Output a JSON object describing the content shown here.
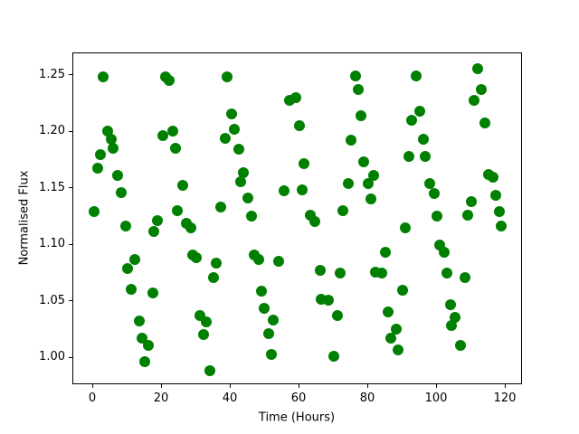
{
  "figure": {
    "background": "#ffffff",
    "spine_color": "#000000"
  },
  "chart_data": {
    "type": "scatter",
    "title": "",
    "xlabel": "Time (Hours)",
    "ylabel": "Normalised Flux",
    "marker_color": "#008000",
    "marker_diameter_px": 12,
    "grid": false,
    "legend": null,
    "xlim": [
      -5.8,
      125.0
    ],
    "ylim": [
      0.976,
      1.27
    ],
    "xticks": [
      0,
      20,
      40,
      60,
      80,
      100,
      120
    ],
    "xtick_labels": [
      "0",
      "20",
      "40",
      "60",
      "80",
      "100",
      "120"
    ],
    "yticks": [
      1.0,
      1.05,
      1.1,
      1.15,
      1.2,
      1.25
    ],
    "ytick_labels": [
      "1.00",
      "1.05",
      "1.10",
      "1.15",
      "1.20",
      "1.25"
    ],
    "points": [
      [
        2.9,
        1.249
      ],
      [
        21.1,
        1.249
      ],
      [
        22.1,
        1.246
      ],
      [
        38.9,
        1.249
      ],
      [
        57.1,
        1.228
      ],
      [
        58.9,
        1.231
      ],
      [
        60.0,
        1.206
      ],
      [
        40.3,
        1.216
      ],
      [
        4.2,
        1.201
      ],
      [
        5.3,
        1.194
      ],
      [
        5.8,
        1.186
      ],
      [
        2.1,
        1.18
      ],
      [
        1.3,
        1.168
      ],
      [
        7.1,
        1.162
      ],
      [
        8.2,
        1.147
      ],
      [
        20.3,
        1.197
      ],
      [
        23.2,
        1.201
      ],
      [
        23.9,
        1.186
      ],
      [
        26.1,
        1.153
      ],
      [
        38.4,
        1.195
      ],
      [
        41.1,
        1.203
      ],
      [
        42.4,
        1.185
      ],
      [
        43.7,
        1.164
      ],
      [
        42.9,
        1.156
      ],
      [
        45.0,
        1.142
      ],
      [
        37.1,
        1.134
      ],
      [
        0.3,
        1.13
      ],
      [
        24.5,
        1.131
      ],
      [
        46.1,
        1.126
      ],
      [
        55.5,
        1.148
      ],
      [
        76.3,
        1.25
      ],
      [
        93.9,
        1.25
      ],
      [
        111.8,
        1.256
      ],
      [
        77.1,
        1.238
      ],
      [
        112.9,
        1.238
      ],
      [
        110.8,
        1.228
      ],
      [
        77.9,
        1.215
      ],
      [
        95.0,
        1.219
      ],
      [
        92.6,
        1.211
      ],
      [
        113.9,
        1.208
      ],
      [
        75.0,
        1.193
      ],
      [
        96.0,
        1.194
      ],
      [
        91.8,
        1.179
      ],
      [
        96.6,
        1.179
      ],
      [
        61.3,
        1.172
      ],
      [
        78.7,
        1.174
      ],
      [
        81.6,
        1.162
      ],
      [
        115.0,
        1.163
      ],
      [
        116.3,
        1.16
      ],
      [
        74.2,
        1.155
      ],
      [
        80.0,
        1.155
      ],
      [
        97.8,
        1.155
      ],
      [
        60.8,
        1.149
      ],
      [
        99.2,
        1.146
      ],
      [
        80.8,
        1.141
      ],
      [
        110.0,
        1.139
      ],
      [
        117.1,
        1.144
      ],
      [
        72.6,
        1.131
      ],
      [
        63.2,
        1.127
      ],
      [
        64.6,
        1.121
      ],
      [
        100.0,
        1.126
      ],
      [
        108.9,
        1.127
      ],
      [
        118.2,
        1.13
      ],
      [
        118.7,
        1.117
      ],
      [
        9.5,
        1.117
      ],
      [
        18.7,
        1.122
      ],
      [
        17.6,
        1.112
      ],
      [
        27.1,
        1.119
      ],
      [
        28.3,
        1.115
      ],
      [
        12.1,
        1.087
      ],
      [
        10.0,
        1.079
      ],
      [
        11.1,
        1.061
      ],
      [
        17.4,
        1.058
      ],
      [
        13.4,
        1.033
      ],
      [
        14.2,
        1.018
      ],
      [
        16.1,
        1.011
      ],
      [
        15.0,
        0.997
      ],
      [
        28.9,
        1.091
      ],
      [
        30.0,
        1.089
      ],
      [
        35.8,
        1.084
      ],
      [
        35.0,
        1.071
      ],
      [
        31.1,
        1.038
      ],
      [
        32.9,
        1.032
      ],
      [
        32.1,
        1.021
      ],
      [
        33.9,
        0.989
      ],
      [
        46.8,
        1.091
      ],
      [
        48.2,
        1.087
      ],
      [
        53.9,
        1.086
      ],
      [
        48.9,
        1.059
      ],
      [
        49.7,
        1.044
      ],
      [
        52.4,
        1.034
      ],
      [
        51.1,
        1.022
      ],
      [
        51.8,
        1.003
      ],
      [
        90.8,
        1.115
      ],
      [
        100.8,
        1.1
      ],
      [
        102.1,
        1.094
      ],
      [
        85.0,
        1.094
      ],
      [
        66.1,
        1.078
      ],
      [
        71.8,
        1.075
      ],
      [
        82.1,
        1.076
      ],
      [
        83.9,
        1.075
      ],
      [
        90.0,
        1.06
      ],
      [
        102.9,
        1.075
      ],
      [
        108.2,
        1.071
      ],
      [
        66.3,
        1.052
      ],
      [
        68.4,
        1.051
      ],
      [
        71.1,
        1.038
      ],
      [
        85.8,
        1.041
      ],
      [
        103.9,
        1.047
      ],
      [
        105.3,
        1.036
      ],
      [
        104.2,
        1.029
      ],
      [
        88.2,
        1.026
      ],
      [
        86.6,
        1.018
      ],
      [
        88.7,
        1.007
      ],
      [
        106.8,
        1.011
      ],
      [
        70.0,
        1.002
      ]
    ]
  }
}
